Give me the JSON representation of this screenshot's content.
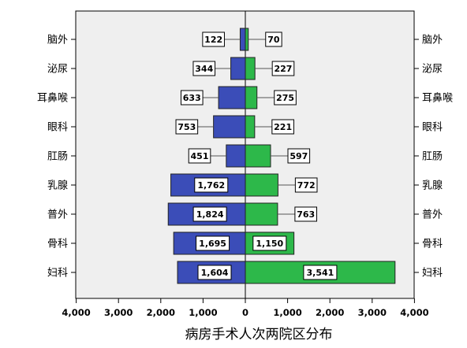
{
  "chart_data": {
    "type": "bar",
    "orientation": "horizontal-butterfly",
    "categories": [
      "脑外",
      "泌尿",
      "耳鼻喉",
      "眼科",
      "肛肠",
      "乳腺",
      "普外",
      "骨科",
      "妇科"
    ],
    "series": [
      {
        "values": [
          122,
          344,
          633,
          753,
          451,
          1762,
          1824,
          1695,
          1604
        ],
        "labels": [
          "122",
          "344",
          "633",
          "753",
          "451",
          "1,762",
          "1,824",
          "1,695",
          "1,604"
        ],
        "color": "#3b4db8",
        "side": "left"
      },
      {
        "values": [
          70,
          227,
          275,
          221,
          597,
          772,
          763,
          1150,
          3541
        ],
        "labels": [
          "70",
          "227",
          "275",
          "221",
          "597",
          "772",
          "763",
          "1,150",
          "3,541"
        ],
        "color": "#2db84a",
        "side": "right"
      }
    ],
    "xlim": [
      -4000,
      4000
    ],
    "xticks": [
      -4000,
      -3000,
      -2000,
      -1000,
      0,
      1000,
      2000,
      3000,
      4000
    ],
    "xtick_labels": [
      "4,000",
      "3,000",
      "2,000",
      "1,000",
      "0",
      "1,000",
      "2,000",
      "3,000",
      "4,000"
    ],
    "xlabel": "病房手术人次两院区分布",
    "plot_background": "#efefef",
    "grid": false,
    "legend": "none"
  }
}
